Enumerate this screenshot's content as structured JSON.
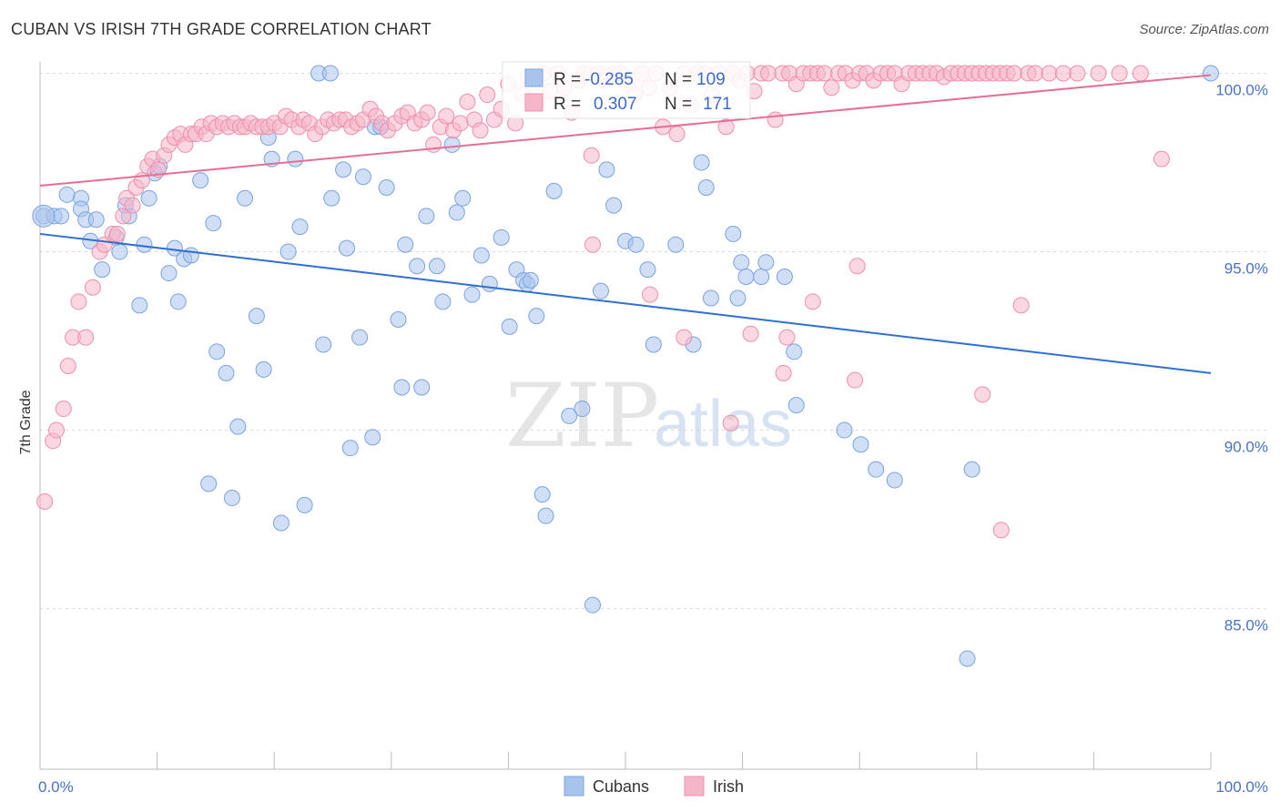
{
  "header": {
    "title": "CUBAN VS IRISH 7TH GRADE CORRELATION CHART",
    "source": "Source: ZipAtlas.com"
  },
  "watermark": {
    "zip": "ZIP",
    "atlas": "atlas"
  },
  "legend": {
    "cubans": {
      "r_label": "R =",
      "r_value": "-0.285",
      "n_label": "N =",
      "n_value": "109"
    },
    "irish": {
      "r_label": "R =",
      "r_value": "0.307",
      "n_label": "N =",
      "n_value": "171"
    }
  },
  "colors": {
    "cubans_fill": "#a9c4ec",
    "cubans_stroke": "#7aa3e0",
    "cubans_line": "#2f6fd0",
    "irish_fill": "#f5b6c9",
    "irish_stroke": "#ee8fad",
    "irish_line": "#e56e98",
    "grid": "#d9d9d9"
  },
  "chart_data": {
    "type": "scatter",
    "title": "CUBAN VS IRISH 7TH GRADE CORRELATION CHART",
    "xlabel": "",
    "ylabel": "7th Grade",
    "xlim": [
      0,
      100
    ],
    "ylim": [
      80.5,
      100.6
    ],
    "x_tick_labels": [
      "0.0%",
      "100.0%"
    ],
    "y_ticks": [
      85,
      90,
      95,
      100
    ],
    "y_tick_labels": [
      "85.0%",
      "90.0%",
      "95.0%",
      "100.0%"
    ],
    "grid": true,
    "legend_position": "top-center",
    "bottom_legend": [
      "Cubans",
      "Irish"
    ],
    "series": [
      {
        "name": "Cubans",
        "r": -0.285,
        "n": 109,
        "trend": {
          "x": [
            0,
            100
          ],
          "y": [
            95.5,
            91.6
          ]
        },
        "points": [
          [
            0.3,
            96.0
          ],
          [
            1.2,
            96.0
          ],
          [
            1.8,
            96.0
          ],
          [
            2.3,
            96.6
          ],
          [
            3.5,
            96.5
          ],
          [
            3.5,
            96.2
          ],
          [
            3.9,
            95.9
          ],
          [
            4.3,
            95.3
          ],
          [
            4.8,
            95.9
          ],
          [
            5.3,
            94.5
          ],
          [
            6.5,
            95.4
          ],
          [
            6.8,
            95.0
          ],
          [
            7.3,
            96.3
          ],
          [
            7.6,
            96.0
          ],
          [
            8.5,
            93.5
          ],
          [
            8.9,
            95.2
          ],
          [
            9.3,
            96.5
          ],
          [
            9.8,
            97.2
          ],
          [
            10.2,
            97.4
          ],
          [
            11.0,
            94.4
          ],
          [
            11.5,
            95.1
          ],
          [
            11.8,
            93.6
          ],
          [
            12.3,
            94.8
          ],
          [
            12.9,
            94.9
          ],
          [
            13.7,
            97.0
          ],
          [
            14.4,
            88.5
          ],
          [
            14.8,
            95.8
          ],
          [
            15.1,
            92.2
          ],
          [
            15.9,
            91.6
          ],
          [
            16.4,
            88.1
          ],
          [
            16.9,
            90.1
          ],
          [
            17.5,
            96.5
          ],
          [
            18.5,
            93.2
          ],
          [
            19.1,
            91.7
          ],
          [
            19.5,
            98.2
          ],
          [
            19.8,
            97.6
          ],
          [
            20.6,
            87.4
          ],
          [
            21.2,
            95.0
          ],
          [
            21.8,
            97.6
          ],
          [
            22.2,
            95.7
          ],
          [
            22.6,
            87.9
          ],
          [
            23.8,
            100.0
          ],
          [
            24.2,
            92.4
          ],
          [
            24.8,
            100.0
          ],
          [
            24.9,
            96.5
          ],
          [
            25.9,
            97.3
          ],
          [
            26.2,
            95.1
          ],
          [
            26.5,
            89.5
          ],
          [
            27.3,
            92.6
          ],
          [
            27.6,
            97.1
          ],
          [
            28.4,
            89.8
          ],
          [
            28.6,
            98.5
          ],
          [
            29.1,
            98.5
          ],
          [
            29.6,
            96.8
          ],
          [
            30.6,
            93.1
          ],
          [
            30.9,
            91.2
          ],
          [
            31.2,
            95.2
          ],
          [
            32.2,
            94.6
          ],
          [
            32.6,
            91.2
          ],
          [
            33.0,
            96.0
          ],
          [
            33.9,
            94.6
          ],
          [
            34.4,
            93.6
          ],
          [
            35.2,
            98.0
          ],
          [
            35.6,
            96.1
          ],
          [
            36.1,
            96.5
          ],
          [
            36.9,
            93.8
          ],
          [
            37.7,
            94.9
          ],
          [
            38.4,
            94.1
          ],
          [
            39.4,
            95.4
          ],
          [
            40.1,
            92.9
          ],
          [
            40.7,
            94.5
          ],
          [
            41.3,
            94.2
          ],
          [
            41.6,
            94.1
          ],
          [
            41.9,
            94.2
          ],
          [
            42.4,
            93.2
          ],
          [
            42.9,
            88.2
          ],
          [
            43.2,
            87.6
          ],
          [
            43.9,
            96.7
          ],
          [
            45.2,
            90.4
          ],
          [
            46.3,
            90.6
          ],
          [
            47.2,
            85.1
          ],
          [
            47.9,
            93.9
          ],
          [
            48.4,
            97.3
          ],
          [
            49.0,
            96.3
          ],
          [
            50.0,
            95.3
          ],
          [
            50.9,
            95.2
          ],
          [
            51.9,
            94.5
          ],
          [
            52.4,
            92.4
          ],
          [
            54.3,
            95.2
          ],
          [
            55.8,
            92.4
          ],
          [
            56.5,
            97.5
          ],
          [
            56.9,
            96.8
          ],
          [
            57.3,
            93.7
          ],
          [
            59.2,
            95.5
          ],
          [
            59.6,
            93.7
          ],
          [
            59.9,
            94.7
          ],
          [
            60.3,
            94.3
          ],
          [
            61.6,
            94.3
          ],
          [
            62.0,
            94.7
          ],
          [
            63.6,
            94.3
          ],
          [
            64.4,
            92.2
          ],
          [
            64.6,
            90.7
          ],
          [
            68.7,
            90.0
          ],
          [
            70.1,
            89.6
          ],
          [
            71.4,
            88.9
          ],
          [
            73.0,
            88.6
          ],
          [
            79.2,
            83.6
          ],
          [
            79.6,
            88.9
          ],
          [
            100,
            100.0
          ]
        ]
      },
      {
        "name": "Irish",
        "r": 0.307,
        "n": 171,
        "trend": {
          "x": [
            0,
            100
          ],
          "y": [
            96.85,
            99.95
          ]
        },
        "points": [
          [
            0.4,
            88.0
          ],
          [
            1.1,
            89.7
          ],
          [
            1.4,
            90.0
          ],
          [
            2.0,
            90.6
          ],
          [
            2.4,
            91.8
          ],
          [
            2.8,
            92.6
          ],
          [
            3.3,
            93.6
          ],
          [
            3.9,
            92.6
          ],
          [
            4.5,
            94.0
          ],
          [
            5.1,
            95.0
          ],
          [
            5.5,
            95.2
          ],
          [
            6.2,
            95.5
          ],
          [
            6.6,
            95.5
          ],
          [
            7.1,
            96.0
          ],
          [
            7.4,
            96.5
          ],
          [
            7.9,
            96.3
          ],
          [
            8.2,
            96.8
          ],
          [
            8.7,
            97.0
          ],
          [
            9.2,
            97.4
          ],
          [
            9.6,
            97.6
          ],
          [
            10.1,
            97.3
          ],
          [
            10.6,
            97.7
          ],
          [
            11.0,
            98.0
          ],
          [
            11.5,
            98.2
          ],
          [
            12.0,
            98.3
          ],
          [
            12.4,
            98.0
          ],
          [
            12.9,
            98.3
          ],
          [
            13.3,
            98.3
          ],
          [
            13.8,
            98.5
          ],
          [
            14.2,
            98.3
          ],
          [
            14.6,
            98.6
          ],
          [
            15.1,
            98.5
          ],
          [
            15.6,
            98.6
          ],
          [
            16.1,
            98.5
          ],
          [
            16.6,
            98.6
          ],
          [
            17.1,
            98.5
          ],
          [
            17.5,
            98.5
          ],
          [
            18.0,
            98.6
          ],
          [
            18.5,
            98.5
          ],
          [
            19.0,
            98.5
          ],
          [
            19.5,
            98.5
          ],
          [
            20.0,
            98.6
          ],
          [
            20.5,
            98.5
          ],
          [
            21.0,
            98.8
          ],
          [
            21.5,
            98.7
          ],
          [
            22.1,
            98.5
          ],
          [
            22.5,
            98.7
          ],
          [
            23.0,
            98.6
          ],
          [
            23.5,
            98.3
          ],
          [
            24.1,
            98.5
          ],
          [
            24.6,
            98.7
          ],
          [
            25.1,
            98.6
          ],
          [
            25.6,
            98.7
          ],
          [
            26.1,
            98.7
          ],
          [
            26.6,
            98.5
          ],
          [
            27.1,
            98.6
          ],
          [
            27.6,
            98.7
          ],
          [
            28.2,
            99.0
          ],
          [
            28.7,
            98.8
          ],
          [
            29.2,
            98.6
          ],
          [
            29.7,
            98.4
          ],
          [
            30.3,
            98.6
          ],
          [
            30.9,
            98.8
          ],
          [
            31.4,
            98.9
          ],
          [
            32.0,
            98.6
          ],
          [
            32.6,
            98.7
          ],
          [
            33.1,
            98.9
          ],
          [
            33.6,
            98.0
          ],
          [
            34.2,
            98.5
          ],
          [
            34.7,
            98.8
          ],
          [
            35.3,
            98.4
          ],
          [
            35.9,
            98.6
          ],
          [
            36.5,
            99.2
          ],
          [
            37.1,
            98.7
          ],
          [
            37.6,
            98.4
          ],
          [
            38.2,
            99.4
          ],
          [
            38.8,
            98.7
          ],
          [
            39.4,
            99.0
          ],
          [
            40.0,
            99.7
          ],
          [
            40.6,
            98.6
          ],
          [
            41.2,
            99.4
          ],
          [
            41.7,
            99.9
          ],
          [
            42.4,
            99.2
          ],
          [
            43.0,
            100.0
          ],
          [
            43.6,
            99.5
          ],
          [
            44.2,
            100.0
          ],
          [
            44.8,
            99.6
          ],
          [
            45.4,
            98.9
          ],
          [
            46.0,
            99.8
          ],
          [
            46.5,
            100.0
          ],
          [
            47.1,
            97.7
          ],
          [
            47.7,
            100.0
          ],
          [
            48.3,
            99.8
          ],
          [
            49.0,
            100.0
          ],
          [
            49.6,
            100.0
          ],
          [
            50.2,
            99.7
          ],
          [
            50.8,
            99.4
          ],
          [
            51.4,
            100.0
          ],
          [
            52.0,
            99.6
          ],
          [
            52.6,
            100.0
          ],
          [
            53.2,
            98.5
          ],
          [
            53.8,
            99.6
          ],
          [
            54.4,
            98.3
          ],
          [
            55.0,
            100.0
          ],
          [
            55.6,
            99.1
          ],
          [
            56.2,
            100.0
          ],
          [
            56.8,
            100.0
          ],
          [
            57.4,
            99.4
          ],
          [
            58.0,
            100.0
          ],
          [
            58.6,
            98.5
          ],
          [
            59.2,
            100.0
          ],
          [
            59.8,
            99.8
          ],
          [
            60.4,
            100.0
          ],
          [
            61.0,
            99.5
          ],
          [
            61.6,
            100.0
          ],
          [
            62.2,
            100.0
          ],
          [
            62.8,
            98.7
          ],
          [
            63.4,
            100.0
          ],
          [
            64.0,
            100.0
          ],
          [
            64.6,
            99.7
          ],
          [
            65.2,
            100.0
          ],
          [
            65.8,
            100.0
          ],
          [
            66.4,
            100.0
          ],
          [
            67.0,
            100.0
          ],
          [
            67.6,
            99.6
          ],
          [
            68.2,
            100.0
          ],
          [
            68.8,
            100.0
          ],
          [
            69.4,
            99.8
          ],
          [
            70.0,
            100.0
          ],
          [
            70.6,
            100.0
          ],
          [
            71.2,
            99.8
          ],
          [
            71.8,
            100.0
          ],
          [
            72.4,
            100.0
          ],
          [
            73.0,
            100.0
          ],
          [
            73.6,
            99.7
          ],
          [
            74.2,
            100.0
          ],
          [
            74.8,
            100.0
          ],
          [
            75.4,
            100.0
          ],
          [
            76.0,
            100.0
          ],
          [
            76.6,
            100.0
          ],
          [
            77.2,
            99.9
          ],
          [
            77.8,
            100.0
          ],
          [
            78.4,
            100.0
          ],
          [
            79.0,
            100.0
          ],
          [
            79.6,
            100.0
          ],
          [
            80.2,
            100.0
          ],
          [
            80.8,
            100.0
          ],
          [
            81.4,
            100.0
          ],
          [
            82.0,
            100.0
          ],
          [
            82.6,
            100.0
          ],
          [
            83.2,
            100.0
          ],
          [
            84.4,
            100.0
          ],
          [
            85.0,
            100.0
          ],
          [
            86.2,
            100.0
          ],
          [
            87.4,
            100.0
          ],
          [
            88.6,
            100.0
          ],
          [
            90.4,
            100.0
          ],
          [
            92.2,
            100.0
          ],
          [
            94.0,
            100.0
          ],
          [
            95.8,
            97.6
          ],
          [
            59.0,
            90.2
          ],
          [
            69.6,
            91.4
          ],
          [
            80.5,
            91.0
          ],
          [
            82.1,
            87.2
          ],
          [
            83.8,
            93.5
          ],
          [
            69.8,
            94.6
          ],
          [
            63.5,
            91.6
          ],
          [
            60.7,
            92.7
          ],
          [
            63.8,
            92.6
          ],
          [
            66.0,
            93.6
          ],
          [
            55.0,
            92.6
          ],
          [
            52.1,
            93.8
          ],
          [
            47.2,
            95.2
          ]
        ]
      }
    ]
  }
}
